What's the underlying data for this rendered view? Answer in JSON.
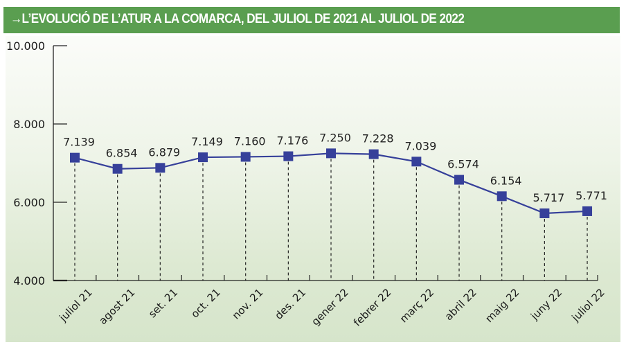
{
  "header": {
    "title": "→L’EVOLUCIÓ DE L’ATUR A LA COMARCA, DEL JULIOL DE 2021 AL JULIOL DE 2022"
  },
  "colors": {
    "title_bar": "#5a9e50",
    "series": "#36409a",
    "axis": "#222222"
  },
  "chart_data": {
    "type": "line",
    "title": "L’EVOLUCIÓ DE L’ATUR A LA COMARCA, DEL JULIOL DE 2021 AL JULIOL DE 2022",
    "xlabel": "",
    "ylabel": "",
    "ylim": [
      4000,
      10000
    ],
    "yticks": [
      4000,
      6000,
      8000,
      10000
    ],
    "ytick_labels": [
      "4.000",
      "6.000",
      "8.000",
      "10.000"
    ],
    "grid": false,
    "legend": "none",
    "categories": [
      "juliol 21",
      "agost 21",
      "set. 21",
      "oct. 21",
      "nov. 21",
      "des. 21",
      "gener 22",
      "febrer 22",
      "març 22",
      "abril 22",
      "maig 22",
      "juny 22",
      "juliol 22"
    ],
    "series": [
      {
        "name": "Atur",
        "values": [
          7139,
          6854,
          6879,
          7149,
          7160,
          7176,
          7250,
          7228,
          7039,
          6574,
          6154,
          5717,
          5771
        ],
        "labels": [
          "7.139",
          "6.854",
          "6.879",
          "7.149",
          "7.160",
          "7.176",
          "7.250",
          "7.228",
          "7.039",
          "6.574",
          "6.154",
          "5.717",
          "5.771"
        ]
      }
    ]
  }
}
